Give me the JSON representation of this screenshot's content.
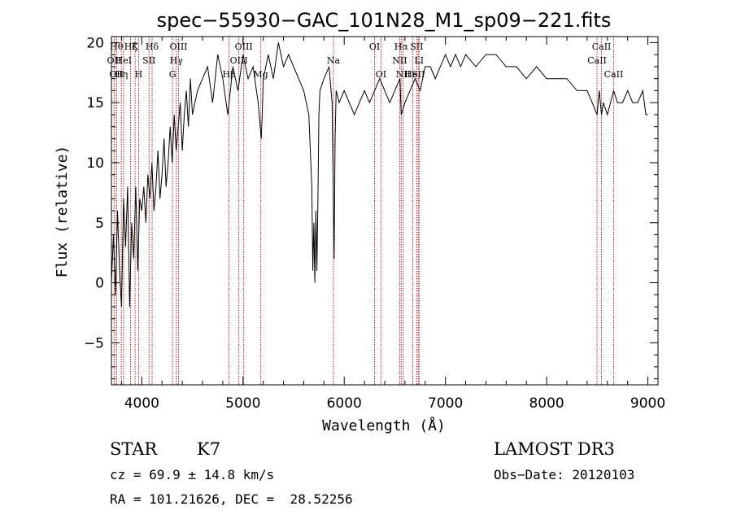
{
  "chart_data": {
    "type": "line",
    "title": "spec−55930−GAC_101N28_M1_sp09−221.fits",
    "xlabel": "Wavelength (Å)",
    "ylabel": "Flux (relative)",
    "xlim": [
      3700,
      9100
    ],
    "ylim": [
      -8.5,
      20.5
    ],
    "x_ticks": [
      4000,
      5000,
      6000,
      7000,
      8000,
      9000
    ],
    "y_ticks": [
      -5,
      0,
      5,
      10,
      15,
      20
    ],
    "x_tick_labels": [
      "4000",
      "5000",
      "6000",
      "7000",
      "8000",
      "9000"
    ],
    "y_tick_labels": [
      "−5",
      "0",
      "5",
      "10",
      "15",
      "20"
    ],
    "grid": false,
    "line_color": "#000000",
    "marker_color": "#b22222",
    "series": [
      {
        "x": [
          3700,
          3720,
          3740,
          3760,
          3780,
          3800,
          3820,
          3840,
          3860,
          3880,
          3900,
          3920,
          3940,
          3960,
          3980,
          4000,
          4020,
          4040,
          4060,
          4080,
          4100,
          4120,
          4140,
          4160,
          4180,
          4200,
          4220,
          4240,
          4260,
          4280,
          4300,
          4320,
          4340,
          4360,
          4380,
          4400,
          4420,
          4440,
          4460,
          4480,
          4500,
          4550,
          4600,
          4650,
          4700,
          4750,
          4800,
          4850,
          4900,
          4950,
          5000,
          5050,
          5100,
          5150,
          5170,
          5180,
          5190,
          5200,
          5250,
          5300,
          5350,
          5400,
          5450,
          5500,
          5550,
          5600,
          5650,
          5680,
          5690,
          5700,
          5710,
          5720,
          5730,
          5740,
          5750,
          5760,
          5800,
          5850,
          5880,
          5890,
          5900,
          5910,
          5920,
          5950,
          6000,
          6050,
          6100,
          6150,
          6200,
          6250,
          6300,
          6350,
          6400,
          6450,
          6500,
          6550,
          6563,
          6600,
          6650,
          6700,
          6750,
          6800,
          6850,
          6900,
          6950,
          7000,
          7050,
          7100,
          7150,
          7200,
          7300,
          7400,
          7500,
          7600,
          7700,
          7800,
          7900,
          8000,
          8100,
          8200,
          8300,
          8400,
          8450,
          8498,
          8520,
          8542,
          8560,
          8600,
          8662,
          8700,
          8750,
          8800,
          8850,
          8900,
          8950,
          8980,
          9000
        ],
        "y": [
          0,
          4,
          -1,
          6,
          1,
          -2,
          7,
          3,
          8,
          -2,
          5,
          2,
          8,
          1,
          7,
          6,
          8,
          5,
          9,
          7,
          10,
          6,
          8,
          11,
          7,
          9,
          12,
          8,
          10,
          13,
          10,
          14,
          11,
          13,
          15,
          11,
          14,
          16,
          13,
          17,
          14,
          16,
          17,
          18,
          15,
          19,
          17,
          14,
          18,
          16,
          19,
          17,
          18,
          15,
          13,
          12,
          14,
          17,
          19,
          17,
          20,
          18,
          19,
          18,
          17,
          16,
          14,
          8,
          1,
          5,
          0,
          6,
          1,
          7,
          14,
          16,
          17,
          18,
          15,
          9,
          2,
          12,
          16,
          15,
          16,
          15,
          14,
          15,
          16,
          15,
          16,
          17,
          16,
          15,
          16,
          17,
          14,
          15,
          16,
          17,
          16,
          18,
          18,
          17,
          18,
          19,
          18,
          19,
          18,
          19,
          18,
          19,
          19,
          18,
          18,
          17,
          18,
          17,
          17,
          17,
          16,
          16,
          15,
          14,
          16,
          14,
          15,
          14,
          16,
          15,
          15,
          16,
          15,
          15,
          16,
          14,
          14
        ]
      }
    ],
    "line_markers": [
      {
        "x": 3727,
        "label": "OII",
        "row": 1
      },
      {
        "x": 3750,
        "label": "Hθ",
        "row": 0
      },
      {
        "x": 3750,
        "label": "OII",
        "row": 2
      },
      {
        "x": 3798,
        "label": "Hη",
        "row": 2
      },
      {
        "x": 3820,
        "label": "HeI",
        "row": 1
      },
      {
        "x": 3889,
        "label": "Hζ",
        "row": 0
      },
      {
        "x": 3934,
        "label": "K",
        "row": 0
      },
      {
        "x": 3969,
        "label": "H",
        "row": 2
      },
      {
        "x": 4072,
        "label": "SII",
        "row": 1
      },
      {
        "x": 4102,
        "label": "Hδ",
        "row": 0
      },
      {
        "x": 4304,
        "label": "G",
        "row": 2
      },
      {
        "x": 4341,
        "label": "Hγ",
        "row": 1
      },
      {
        "x": 4363,
        "label": "OIII",
        "row": 0
      },
      {
        "x": 4861,
        "label": "Hβ",
        "row": 2
      },
      {
        "x": 4959,
        "label": "OIII",
        "row": 1
      },
      {
        "x": 5007,
        "label": "OIII",
        "row": 0
      },
      {
        "x": 5175,
        "label": "Mg",
        "row": 2
      },
      {
        "x": 5893,
        "label": "Na",
        "row": 1
      },
      {
        "x": 6300,
        "label": "OI",
        "row": 0
      },
      {
        "x": 6363,
        "label": "OI",
        "row": 2
      },
      {
        "x": 6548,
        "label": "NII",
        "row": 1
      },
      {
        "x": 6563,
        "label": "Hα",
        "row": 0
      },
      {
        "x": 6583,
        "label": "NII",
        "row": 2
      },
      {
        "x": 6678,
        "label": "HeI",
        "row": 2
      },
      {
        "x": 6716,
        "label": "SII",
        "row": 0
      },
      {
        "x": 6731,
        "label": "SII",
        "row": 2
      },
      {
        "x": 6740,
        "label": "LI",
        "row": 1
      },
      {
        "x": 8498,
        "label": "CaII",
        "row": 1
      },
      {
        "x": 8542,
        "label": "CaII",
        "row": 0
      },
      {
        "x": 8662,
        "label": "CaII",
        "row": 2
      }
    ]
  },
  "info": {
    "class": "STAR",
    "subclass": "K7",
    "survey": "LAMOST DR3",
    "cz": "cz = 69.9 ± 14.8 km/s",
    "obs_date": "Obs−Date: 20120103",
    "coords": "RA = 101.21626, DEC =  28.52256"
  }
}
